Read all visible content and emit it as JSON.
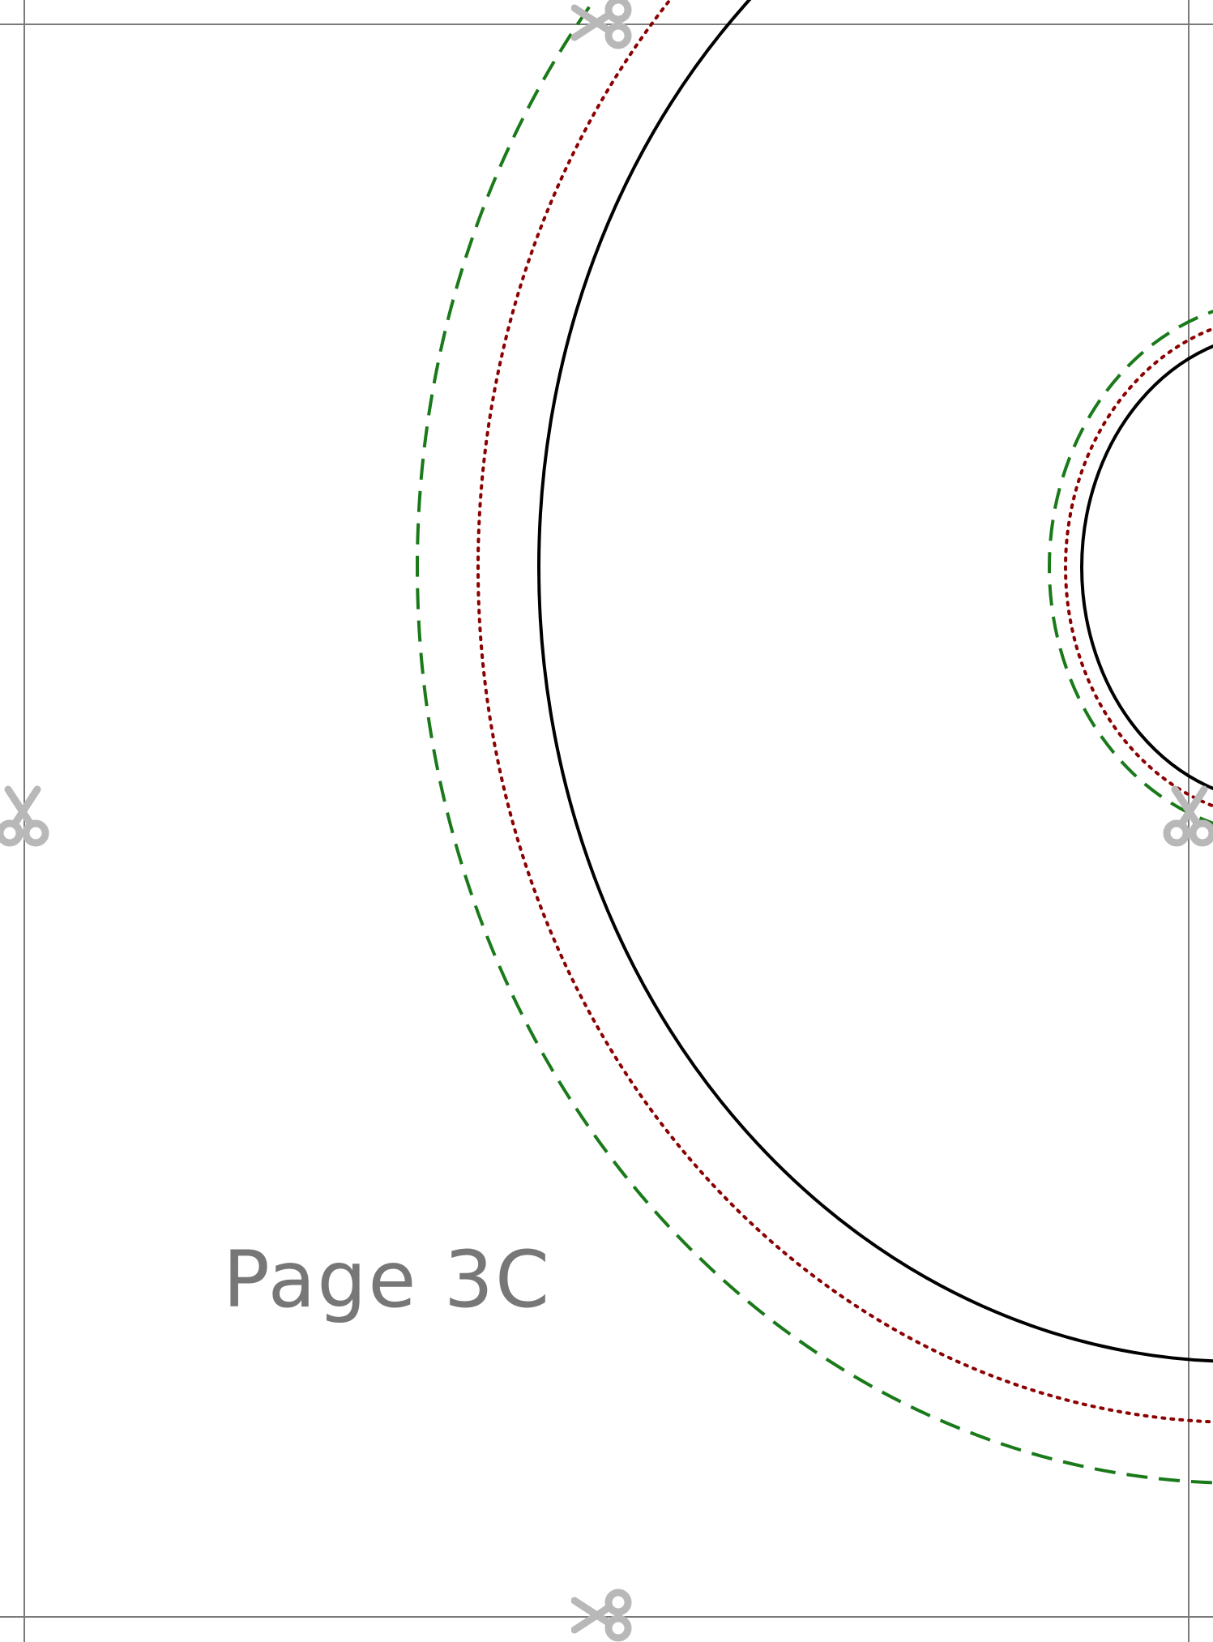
{
  "page": {
    "label": "Page 3C"
  },
  "colors": {
    "border": "#7a7a7a",
    "cut_line_outer": "#1a7a1a",
    "seam_line": "#8b0000",
    "pattern_line": "#000000",
    "scissors": "#b8b8b8",
    "label": "#777777"
  },
  "icons": {
    "cut_marker": "scissors-icon"
  },
  "line_styles": {
    "cut_line_outer": "dashed",
    "seam_line": "dotted",
    "pattern_line": "solid"
  }
}
